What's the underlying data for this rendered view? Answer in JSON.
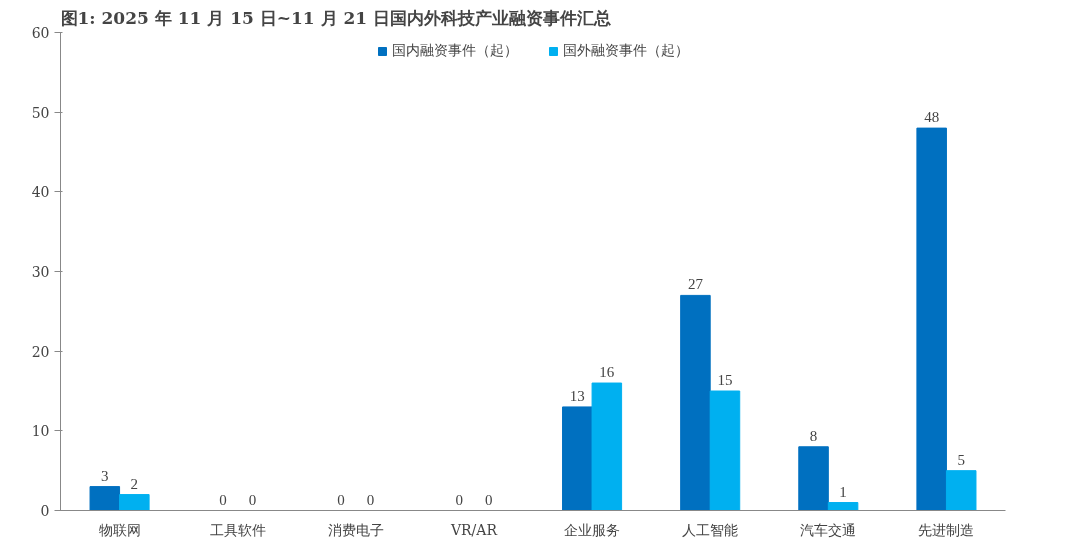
{
  "chart_data": {
    "type": "bar",
    "title": "图1:  2025 年 11 月 15 日~11 月 21 日国内外科技产业融资事件汇总",
    "categories": [
      "物联网",
      "工具软件",
      "消费电子",
      "VR/AR",
      "企业服务",
      "人工智能",
      "汽车交通",
      "先进制造"
    ],
    "series": [
      {
        "name": "国内融资事件（起）",
        "color": "#0070c0",
        "values": [
          3,
          0,
          0,
          0,
          13,
          27,
          8,
          48
        ]
      },
      {
        "name": "国外融资事件（起）",
        "color": "#00b0f0",
        "values": [
          2,
          0,
          0,
          0,
          16,
          15,
          1,
          5
        ]
      }
    ],
    "ylim": [
      0,
      60
    ],
    "yticks": [
      0,
      10,
      20,
      30,
      40,
      50,
      60
    ],
    "data_labels": true,
    "grid": false,
    "legend": "top"
  }
}
